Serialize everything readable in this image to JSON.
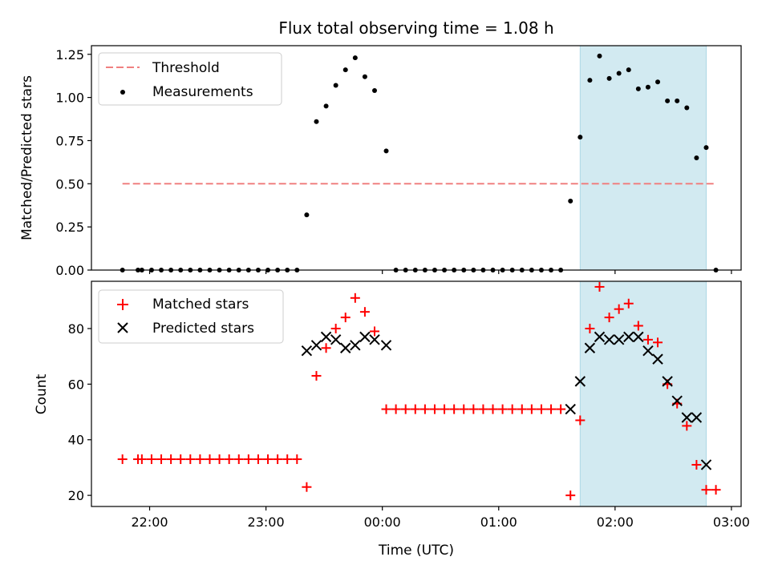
{
  "chart_data": {
    "title": "Flux total observing time = 1.08 h",
    "colors": {
      "threshold": "#f08080",
      "measurement": "#000000",
      "matched": "#ff0000",
      "predicted": "#000000",
      "highlight": "#add8e6"
    },
    "x_axis": {
      "label": "Time (UTC)",
      "unit": "minutes",
      "range": [
        -150,
        185
      ],
      "ticks": [
        {
          "value": -120,
          "label": "22:00"
        },
        {
          "value": -60,
          "label": "23:00"
        },
        {
          "value": 0,
          "label": "00:00"
        },
        {
          "value": 60,
          "label": "01:00"
        },
        {
          "value": 120,
          "label": "02:00"
        },
        {
          "value": 180,
          "label": "03:00"
        }
      ]
    },
    "highlight_span": {
      "start": 102,
      "end": 167
    },
    "panels": [
      {
        "type": "scatter",
        "ylabel": "Matched/Predicted stars",
        "ylim": [
          0,
          1.3
        ],
        "yticks": [
          {
            "value": 0,
            "label": "0.00"
          },
          {
            "value": 0.25,
            "label": "0.25"
          },
          {
            "value": 0.5,
            "label": "0.50"
          },
          {
            "value": 0.75,
            "label": "0.75"
          },
          {
            "value": 1.0,
            "label": "1.00"
          },
          {
            "value": 1.25,
            "label": "1.25"
          }
        ],
        "legend_position": "top-left",
        "threshold": {
          "name": "Threshold",
          "value": 0.5,
          "x_range": [
            -134,
            172
          ]
        },
        "series": [
          {
            "name": "Measurements",
            "points": [
              [
                -134,
                0
              ],
              [
                -126,
                0
              ],
              [
                -124,
                0
              ],
              [
                -119,
                0
              ],
              [
                -114,
                0
              ],
              [
                -109,
                0
              ],
              [
                -104,
                0
              ],
              [
                -99,
                0
              ],
              [
                -94,
                0
              ],
              [
                -89,
                0
              ],
              [
                -84,
                0
              ],
              [
                -79,
                0
              ],
              [
                -74,
                0
              ],
              [
                -69,
                0
              ],
              [
                -64,
                0
              ],
              [
                -59,
                0
              ],
              [
                -54,
                0
              ],
              [
                -49,
                0
              ],
              [
                -44,
                0
              ],
              [
                -39,
                0.32
              ],
              [
                -34,
                0.86
              ],
              [
                -29,
                0.95
              ],
              [
                -24,
                1.07
              ],
              [
                -19,
                1.16
              ],
              [
                -14,
                1.23
              ],
              [
                -9,
                1.12
              ],
              [
                -4,
                1.04
              ],
              [
                2,
                0.69
              ],
              [
                7,
                0
              ],
              [
                12,
                0
              ],
              [
                17,
                0
              ],
              [
                22,
                0
              ],
              [
                27,
                0
              ],
              [
                32,
                0
              ],
              [
                37,
                0
              ],
              [
                42,
                0
              ],
              [
                47,
                0
              ],
              [
                52,
                0
              ],
              [
                57,
                0
              ],
              [
                62,
                0
              ],
              [
                67,
                0
              ],
              [
                72,
                0
              ],
              [
                77,
                0
              ],
              [
                82,
                0
              ],
              [
                87,
                0
              ],
              [
                92,
                0
              ],
              [
                97,
                0.4
              ],
              [
                102,
                0.77
              ],
              [
                107,
                1.1
              ],
              [
                112,
                1.24
              ],
              [
                117,
                1.11
              ],
              [
                122,
                1.14
              ],
              [
                127,
                1.16
              ],
              [
                132,
                1.05
              ],
              [
                137,
                1.06
              ],
              [
                142,
                1.09
              ],
              [
                147,
                0.98
              ],
              [
                152,
                0.98
              ],
              [
                157,
                0.94
              ],
              [
                162,
                0.65
              ],
              [
                167,
                0.71
              ],
              [
                172,
                0
              ]
            ]
          }
        ]
      },
      {
        "type": "scatter",
        "ylabel": "Count",
        "ylim": [
          16,
          97
        ],
        "yticks": [
          {
            "value": 20,
            "label": "20"
          },
          {
            "value": 40,
            "label": "40"
          },
          {
            "value": 60,
            "label": "60"
          },
          {
            "value": 80,
            "label": "80"
          }
        ],
        "legend_position": "top-left",
        "series": [
          {
            "name": "Matched stars",
            "marker": "plus",
            "points": [
              [
                -134,
                33
              ],
              [
                -126,
                33
              ],
              [
                -124,
                33
              ],
              [
                -119,
                33
              ],
              [
                -114,
                33
              ],
              [
                -109,
                33
              ],
              [
                -104,
                33
              ],
              [
                -99,
                33
              ],
              [
                -94,
                33
              ],
              [
                -89,
                33
              ],
              [
                -84,
                33
              ],
              [
                -79,
                33
              ],
              [
                -74,
                33
              ],
              [
                -69,
                33
              ],
              [
                -64,
                33
              ],
              [
                -59,
                33
              ],
              [
                -54,
                33
              ],
              [
                -49,
                33
              ],
              [
                -44,
                33
              ],
              [
                -39,
                23
              ],
              [
                -34,
                63
              ],
              [
                -29,
                73
              ],
              [
                -24,
                80
              ],
              [
                -19,
                84
              ],
              [
                -14,
                91
              ],
              [
                -9,
                86
              ],
              [
                -4,
                79
              ],
              [
                2,
                51
              ],
              [
                7,
                51
              ],
              [
                12,
                51
              ],
              [
                17,
                51
              ],
              [
                22,
                51
              ],
              [
                27,
                51
              ],
              [
                32,
                51
              ],
              [
                37,
                51
              ],
              [
                42,
                51
              ],
              [
                47,
                51
              ],
              [
                52,
                51
              ],
              [
                57,
                51
              ],
              [
                62,
                51
              ],
              [
                67,
                51
              ],
              [
                72,
                51
              ],
              [
                77,
                51
              ],
              [
                82,
                51
              ],
              [
                87,
                51
              ],
              [
                92,
                51
              ],
              [
                97,
                20
              ],
              [
                102,
                47
              ],
              [
                107,
                80
              ],
              [
                112,
                95
              ],
              [
                117,
                84
              ],
              [
                122,
                87
              ],
              [
                127,
                89
              ],
              [
                132,
                81
              ],
              [
                137,
                76
              ],
              [
                142,
                75
              ],
              [
                147,
                60
              ],
              [
                152,
                53
              ],
              [
                157,
                45
              ],
              [
                162,
                31
              ],
              [
                167,
                22
              ],
              [
                172,
                22
              ]
            ]
          },
          {
            "name": "Predicted stars",
            "marker": "cross",
            "points": [
              [
                -39,
                72
              ],
              [
                -34,
                74
              ],
              [
                -29,
                77
              ],
              [
                -24,
                76
              ],
              [
                -19,
                73
              ],
              [
                -14,
                74
              ],
              [
                -9,
                77
              ],
              [
                -4,
                76
              ],
              [
                2,
                74
              ],
              [
                97,
                51
              ],
              [
                102,
                61
              ],
              [
                107,
                73
              ],
              [
                112,
                77
              ],
              [
                117,
                76
              ],
              [
                122,
                76
              ],
              [
                127,
                77
              ],
              [
                132,
                77
              ],
              [
                137,
                72
              ],
              [
                142,
                69
              ],
              [
                147,
                61
              ],
              [
                152,
                54
              ],
              [
                157,
                48
              ],
              [
                162,
                48
              ],
              [
                167,
                31
              ]
            ]
          }
        ]
      }
    ]
  }
}
